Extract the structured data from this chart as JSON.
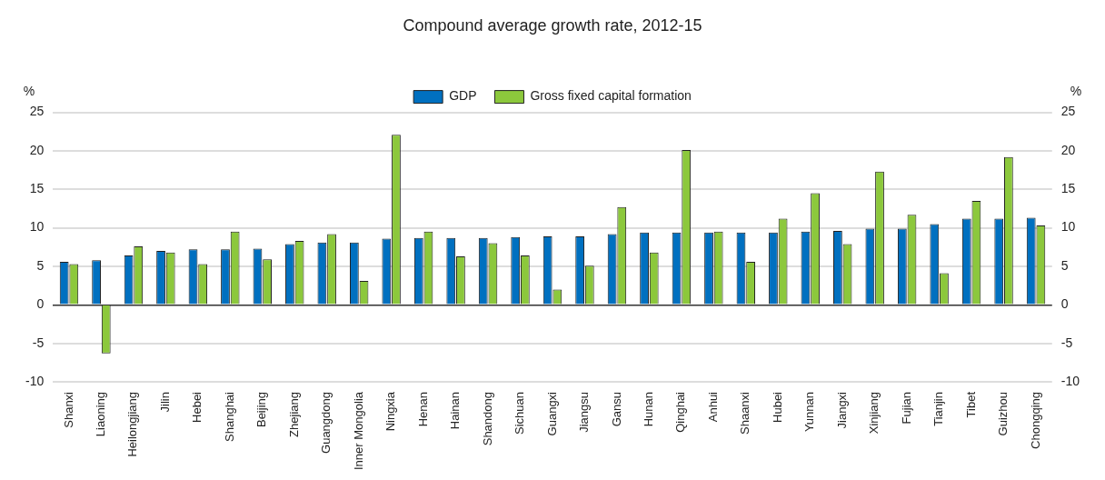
{
  "chart_data": {
    "type": "bar",
    "title": "Compound average growth rate, 2012-15",
    "ylabel": "%",
    "y2label": "%",
    "categories": [
      "Shanxi",
      "Liaoning",
      "Heilongjiang",
      "Jilin",
      "Hebei",
      "Shanghai",
      "Beijing",
      "Zhejiang",
      "Guangdong",
      "Inner Mongolia",
      "Ningxia",
      "Henan",
      "Hainan",
      "Shandong",
      "Sichuan",
      "Guangxi",
      "Jiangsu",
      "Gansu",
      "Hunan",
      "Qinghai",
      "Anhui",
      "Shaanxi",
      "Hubei",
      "Yunnan",
      "Jiangxi",
      "Xinjiang",
      "Fujian",
      "Tianjin",
      "Tibet",
      "Guizhou",
      "Chongqing"
    ],
    "series": [
      {
        "name": "GDP",
        "color": "#0070c0",
        "values": [
          5.6,
          5.8,
          6.4,
          7.0,
          7.2,
          7.2,
          7.3,
          7.9,
          8.1,
          8.1,
          8.6,
          8.7,
          8.7,
          8.7,
          8.8,
          8.9,
          8.9,
          9.2,
          9.4,
          9.4,
          9.4,
          9.4,
          9.4,
          9.5,
          9.6,
          9.9,
          9.9,
          10.5,
          11.2,
          11.2,
          11.3
        ]
      },
      {
        "name": "Gross fixed capital formation",
        "color": "#8cc83c",
        "values": [
          5.3,
          -6.3,
          7.6,
          6.8,
          5.3,
          9.5,
          5.9,
          8.3,
          9.2,
          3.1,
          22.1,
          9.5,
          6.3,
          8.0,
          6.4,
          2.0,
          5.1,
          12.7,
          6.8,
          20.1,
          9.5,
          5.6,
          11.2,
          14.5,
          7.9,
          17.3,
          11.7,
          4.1,
          13.5,
          19.2,
          10.3
        ]
      }
    ],
    "ylim": [
      -10,
      25
    ],
    "yticks": [
      -10,
      -5,
      0,
      5,
      10,
      15,
      20,
      25
    ],
    "y2lim": [
      -10,
      25
    ],
    "y2ticks": [
      -10,
      -5,
      0,
      5,
      10,
      15,
      20,
      25
    ],
    "grid": "y",
    "legend": "top"
  }
}
